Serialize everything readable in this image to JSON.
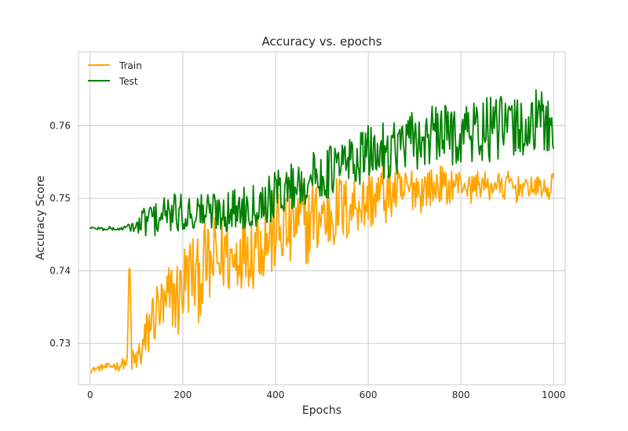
{
  "chart_data": {
    "type": "line",
    "title": "Accuracy vs. epochs",
    "xlabel": "Epochs",
    "ylabel": "Accuracy Score",
    "xlim": [
      -25,
      1025
    ],
    "ylim": [
      0.7243,
      0.7702
    ],
    "xticks": [
      0,
      200,
      400,
      600,
      800,
      1000
    ],
    "xtick_labels": [
      "0",
      "200",
      "400",
      "600",
      "800",
      "1000"
    ],
    "yticks": [
      0.73,
      0.74,
      0.75,
      0.76
    ],
    "ytick_labels": [
      "0.73",
      "0.74",
      "0.75",
      "0.76"
    ],
    "grid": true,
    "legend_position": "top-left",
    "series": [
      {
        "name": "Train",
        "color": "#FFA500",
        "noise_note_excluded": true,
        "points": [
          [
            0,
            0.7262
          ],
          [
            10,
            0.7265
          ],
          [
            20,
            0.7266
          ],
          [
            30,
            0.7268
          ],
          [
            40,
            0.7267
          ],
          [
            50,
            0.727
          ],
          [
            60,
            0.7268
          ],
          [
            70,
            0.7272
          ],
          [
            80,
            0.7274
          ],
          [
            85,
            0.743
          ],
          [
            90,
            0.7275
          ],
          [
            100,
            0.7275
          ],
          [
            110,
            0.729
          ],
          [
            120,
            0.73
          ],
          [
            130,
            0.733
          ],
          [
            140,
            0.734
          ],
          [
            150,
            0.735
          ],
          [
            160,
            0.734
          ],
          [
            170,
            0.736
          ],
          [
            180,
            0.737
          ],
          [
            190,
            0.736
          ],
          [
            200,
            0.738
          ],
          [
            210,
            0.739
          ],
          [
            220,
            0.74
          ],
          [
            230,
            0.738
          ],
          [
            240,
            0.74
          ],
          [
            250,
            0.741
          ],
          [
            260,
            0.74
          ],
          [
            270,
            0.742
          ],
          [
            280,
            0.741
          ],
          [
            290,
            0.743
          ],
          [
            300,
            0.742
          ],
          [
            310,
            0.741
          ],
          [
            320,
            0.743
          ],
          [
            330,
            0.744
          ],
          [
            340,
            0.744
          ],
          [
            350,
            0.743
          ],
          [
            360,
            0.745
          ],
          [
            370,
            0.744
          ],
          [
            380,
            0.745
          ],
          [
            390,
            0.744
          ],
          [
            400,
            0.746
          ],
          [
            410,
            0.745
          ],
          [
            420,
            0.746
          ],
          [
            430,
            0.745
          ],
          [
            440,
            0.747
          ],
          [
            450,
            0.746
          ],
          [
            460,
            0.747
          ],
          [
            470,
            0.746
          ],
          [
            480,
            0.748
          ],
          [
            490,
            0.747
          ],
          [
            500,
            0.748
          ],
          [
            510,
            0.747
          ],
          [
            520,
            0.748
          ],
          [
            530,
            0.748
          ],
          [
            540,
            0.749
          ],
          [
            550,
            0.748
          ],
          [
            560,
            0.749
          ],
          [
            570,
            0.749
          ],
          [
            580,
            0.75
          ],
          [
            590,
            0.749
          ],
          [
            600,
            0.75
          ],
          [
            610,
            0.75
          ],
          [
            620,
            0.75
          ],
          [
            630,
            0.751
          ],
          [
            640,
            0.75
          ],
          [
            650,
            0.751
          ],
          [
            660,
            0.751
          ],
          [
            670,
            0.75
          ],
          [
            680,
            0.751
          ],
          [
            690,
            0.751
          ],
          [
            700,
            0.752
          ],
          [
            710,
            0.751
          ],
          [
            720,
            0.751
          ],
          [
            730,
            0.752
          ],
          [
            740,
            0.751
          ],
          [
            750,
            0.752
          ],
          [
            760,
            0.752
          ],
          [
            770,
            0.751
          ],
          [
            780,
            0.752
          ],
          [
            790,
            0.752
          ],
          [
            800,
            0.752
          ],
          [
            810,
            0.752
          ],
          [
            820,
            0.751
          ],
          [
            830,
            0.752
          ],
          [
            840,
            0.752
          ],
          [
            850,
            0.752
          ],
          [
            860,
            0.751
          ],
          [
            870,
            0.752
          ],
          [
            880,
            0.752
          ],
          [
            890,
            0.751
          ],
          [
            900,
            0.752
          ],
          [
            910,
            0.752
          ],
          [
            920,
            0.751
          ],
          [
            930,
            0.752
          ],
          [
            940,
            0.751
          ],
          [
            950,
            0.752
          ],
          [
            960,
            0.751
          ],
          [
            970,
            0.752
          ],
          [
            980,
            0.751
          ],
          [
            990,
            0.751
          ],
          [
            1000,
            0.753
          ]
        ],
        "spread": [
          [
            0,
            0.0003
          ],
          [
            80,
            0.0008
          ],
          [
            120,
            0.004
          ],
          [
            200,
            0.006
          ],
          [
            400,
            0.006
          ],
          [
            600,
            0.0045
          ],
          [
            800,
            0.002
          ],
          [
            1000,
            0.0015
          ]
        ]
      },
      {
        "name": "Test",
        "color": "#008000",
        "points": [
          [
            0,
            0.746
          ],
          [
            10,
            0.7458
          ],
          [
            20,
            0.7459
          ],
          [
            30,
            0.7457
          ],
          [
            40,
            0.7459
          ],
          [
            50,
            0.7458
          ],
          [
            60,
            0.7457
          ],
          [
            70,
            0.7459
          ],
          [
            80,
            0.746
          ],
          [
            90,
            0.7462
          ],
          [
            100,
            0.7458
          ],
          [
            110,
            0.7465
          ],
          [
            120,
            0.747
          ],
          [
            130,
            0.7475
          ],
          [
            140,
            0.747
          ],
          [
            150,
            0.7475
          ],
          [
            160,
            0.7478
          ],
          [
            170,
            0.7476
          ],
          [
            180,
            0.748
          ],
          [
            190,
            0.7478
          ],
          [
            200,
            0.748
          ],
          [
            210,
            0.7478
          ],
          [
            220,
            0.7482
          ],
          [
            230,
            0.748
          ],
          [
            240,
            0.7483
          ],
          [
            250,
            0.7481
          ],
          [
            260,
            0.748
          ],
          [
            270,
            0.7484
          ],
          [
            280,
            0.7482
          ],
          [
            290,
            0.7485
          ],
          [
            300,
            0.7482
          ],
          [
            310,
            0.7484
          ],
          [
            320,
            0.7486
          ],
          [
            330,
            0.7488
          ],
          [
            340,
            0.749
          ],
          [
            350,
            0.7492
          ],
          [
            360,
            0.7494
          ],
          [
            370,
            0.7496
          ],
          [
            380,
            0.7498
          ],
          [
            390,
            0.75
          ],
          [
            400,
            0.7505
          ],
          [
            410,
            0.751
          ],
          [
            420,
            0.7512
          ],
          [
            430,
            0.7515
          ],
          [
            440,
            0.7518
          ],
          [
            450,
            0.752
          ],
          [
            460,
            0.7522
          ],
          [
            470,
            0.7525
          ],
          [
            480,
            0.7528
          ],
          [
            490,
            0.753
          ],
          [
            500,
            0.7532
          ],
          [
            510,
            0.7535
          ],
          [
            520,
            0.7538
          ],
          [
            530,
            0.754
          ],
          [
            540,
            0.7545
          ],
          [
            550,
            0.7548
          ],
          [
            560,
            0.755
          ],
          [
            570,
            0.7552
          ],
          [
            580,
            0.7555
          ],
          [
            590,
            0.7558
          ],
          [
            600,
            0.756
          ],
          [
            610,
            0.7562
          ],
          [
            620,
            0.7565
          ],
          [
            630,
            0.7566
          ],
          [
            640,
            0.7568
          ],
          [
            650,
            0.757
          ],
          [
            660,
            0.7572
          ],
          [
            670,
            0.7574
          ],
          [
            680,
            0.7575
          ],
          [
            690,
            0.7576
          ],
          [
            700,
            0.7578
          ],
          [
            710,
            0.758
          ],
          [
            720,
            0.7582
          ],
          [
            730,
            0.7584
          ],
          [
            740,
            0.7585
          ],
          [
            750,
            0.7586
          ],
          [
            760,
            0.7588
          ],
          [
            770,
            0.759
          ],
          [
            780,
            0.7588
          ],
          [
            790,
            0.759
          ],
          [
            800,
            0.759
          ],
          [
            810,
            0.7592
          ],
          [
            820,
            0.759
          ],
          [
            830,
            0.7592
          ],
          [
            840,
            0.7594
          ],
          [
            850,
            0.7592
          ],
          [
            860,
            0.7594
          ],
          [
            870,
            0.7595
          ],
          [
            880,
            0.7594
          ],
          [
            890,
            0.7596
          ],
          [
            900,
            0.7595
          ],
          [
            910,
            0.7598
          ],
          [
            920,
            0.7596
          ],
          [
            930,
            0.76
          ],
          [
            940,
            0.7598
          ],
          [
            950,
            0.76
          ],
          [
            960,
            0.7602
          ],
          [
            970,
            0.76
          ],
          [
            980,
            0.7604
          ],
          [
            990,
            0.7603
          ],
          [
            1000,
            0.761
          ]
        ],
        "spread": [
          [
            0,
            0.0002
          ],
          [
            80,
            0.0003
          ],
          [
            120,
            0.0025
          ],
          [
            300,
            0.003
          ],
          [
            600,
            0.004
          ],
          [
            800,
            0.0045
          ],
          [
            1000,
            0.005
          ]
        ]
      }
    ]
  }
}
